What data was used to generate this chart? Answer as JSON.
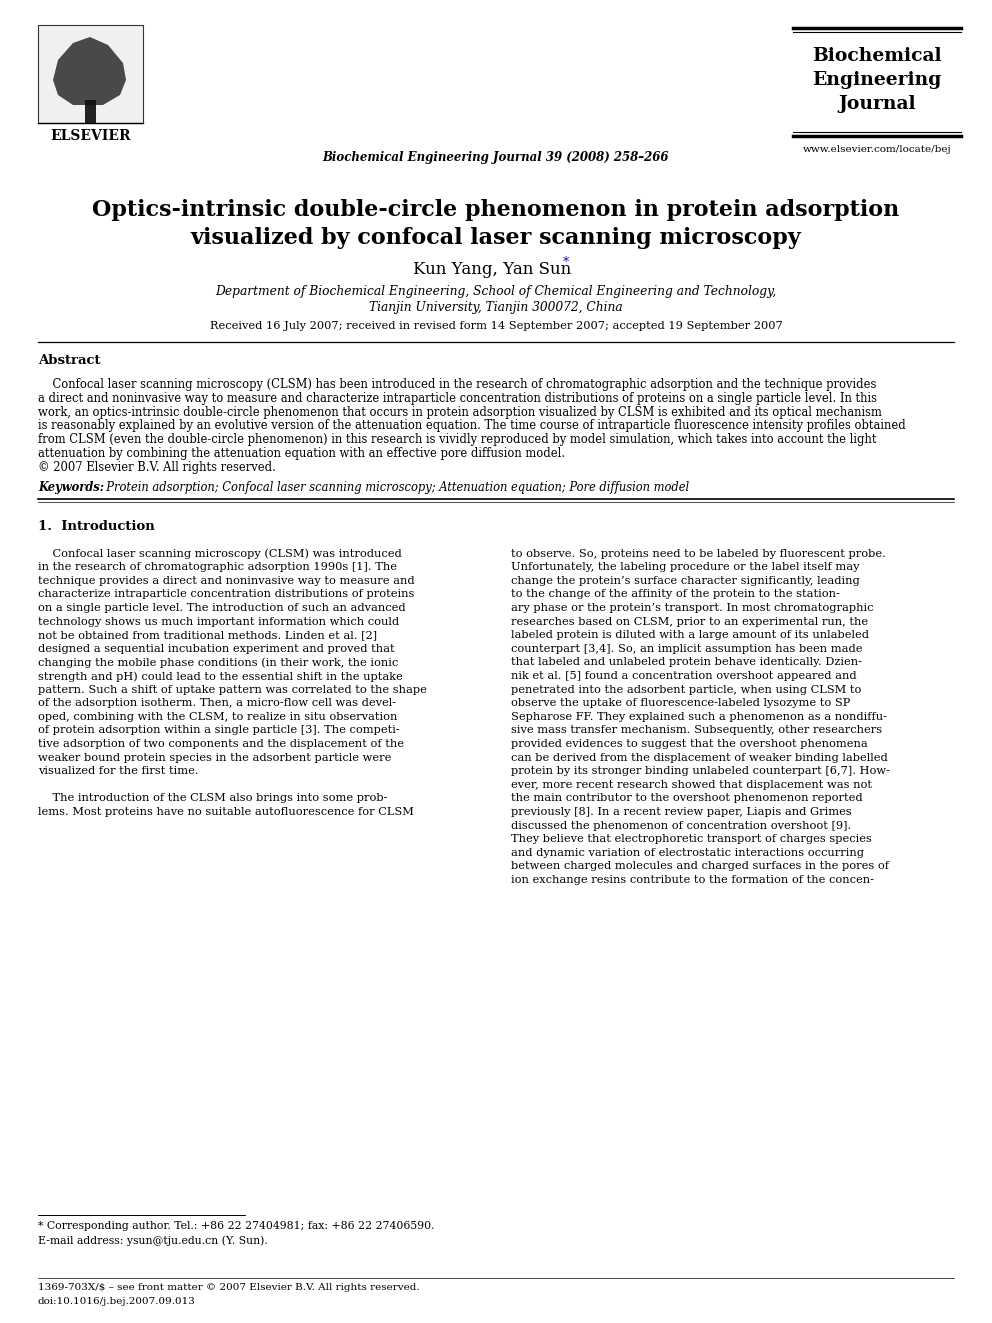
{
  "bg_color": "#ffffff",
  "header_journal": "Biochemical Engineering Journal 39 (2008) 258–266",
  "journal_url": "www.elsevier.com/locate/bej",
  "paper_title_line1": "Optics-intrinsic double-circle phenomenon in protein adsorption",
  "paper_title_line2": "visualized by confocal laser scanning microscopy",
  "affiliation1": "Department of Biochemical Engineering, School of Chemical Engineering and Technology,",
  "affiliation2": "Tianjin University, Tianjin 300072, China",
  "received": "Received 16 July 2007; received in revised form 14 September 2007; accepted 19 September 2007",
  "abstract_title": "Abstract",
  "keywords_label": "Keywords:",
  "keywords_text": "  Protein adsorption; Confocal laser scanning microscopy; Attenuation equation; Pore diffusion model",
  "section1_title": "1.  Introduction",
  "footnote_star": "* Corresponding author. Tel.: +86 22 27404981; fax: +86 22 27406590.",
  "footnote_email": "E-mail address: ysun@tju.edu.cn (Y. Sun).",
  "footer_issn": "1369-703X/$ – see front matter © 2007 Elsevier B.V. All rights reserved.",
  "footer_doi": "doi:10.1016/j.bej.2007.09.013",
  "abs_lines": [
    "    Confocal laser scanning microscopy (CLSM) has been introduced in the research of chromatographic adsorption and the technique provides",
    "a direct and noninvasive way to measure and characterize intraparticle concentration distributions of proteins on a single particle level. In this",
    "work, an optics-intrinsic double-circle phenomenon that occurs in protein adsorption visualized by CLSM is exhibited and its optical mechanism",
    "is reasonably explained by an evolutive version of the attenuation equation. The time course of intraparticle fluorescence intensity profiles obtained",
    "from CLSM (even the double-circle phenomenon) in this research is vividly reproduced by model simulation, which takes into account the light",
    "attenuation by combining the attenuation equation with an effective pore diffusion model.",
    "© 2007 Elsevier B.V. All rights reserved."
  ],
  "col1_lines": [
    "    Confocal laser scanning microscopy (CLSM) was introduced",
    "in the research of chromatographic adsorption 1990s [1]. The",
    "technique provides a direct and noninvasive way to measure and",
    "characterize intraparticle concentration distributions of proteins",
    "on a single particle level. The introduction of such an advanced",
    "technology shows us much important information which could",
    "not be obtained from traditional methods. Linden et al. [2]",
    "designed a sequential incubation experiment and proved that",
    "changing the mobile phase conditions (in their work, the ionic",
    "strength and pH) could lead to the essential shift in the uptake",
    "pattern. Such a shift of uptake pattern was correlated to the shape",
    "of the adsorption isotherm. Then, a micro-flow cell was devel-",
    "oped, combining with the CLSM, to realize in situ observation",
    "of protein adsorption within a single particle [3]. The competi-",
    "tive adsorption of two components and the displacement of the",
    "weaker bound protein species in the adsorbent particle were",
    "visualized for the first time.",
    "",
    "    The introduction of the CLSM also brings into some prob-",
    "lems. Most proteins have no suitable autofluorescence for CLSM"
  ],
  "col2_lines": [
    "to observe. So, proteins need to be labeled by fluorescent probe.",
    "Unfortunately, the labeling procedure or the label itself may",
    "change the protein’s surface character significantly, leading",
    "to the change of the affinity of the protein to the station-",
    "ary phase or the protein’s transport. In most chromatographic",
    "researches based on CLSM, prior to an experimental run, the",
    "labeled protein is diluted with a large amount of its unlabeled",
    "counterpart [3,4]. So, an implicit assumption has been made",
    "that labeled and unlabeled protein behave identically. Dzien-",
    "nik et al. [5] found a concentration overshoot appeared and",
    "penetrated into the adsorbent particle, when using CLSM to",
    "observe the uptake of fluorescence-labeled lysozyme to SP",
    "Sepharose FF. They explained such a phenomenon as a nondiffu-",
    "sive mass transfer mechanism. Subsequently, other researchers",
    "provided evidences to suggest that the overshoot phenomena",
    "can be derived from the displacement of weaker binding labelled",
    "protein by its stronger binding unlabeled counterpart [6,7]. How-",
    "ever, more recent research showed that displacement was not",
    "the main contributor to the overshoot phenomenon reported",
    "previously [8]. In a recent review paper, Liapis and Grimes",
    "discussed the phenomenon of concentration overshoot [9].",
    "They believe that electrophoretic transport of charges species",
    "and dynamic variation of electrostatic interactions occurring",
    "between charged molecules and charged surfaces in the pores of",
    "ion exchange resins contribute to the formation of the concen-"
  ]
}
